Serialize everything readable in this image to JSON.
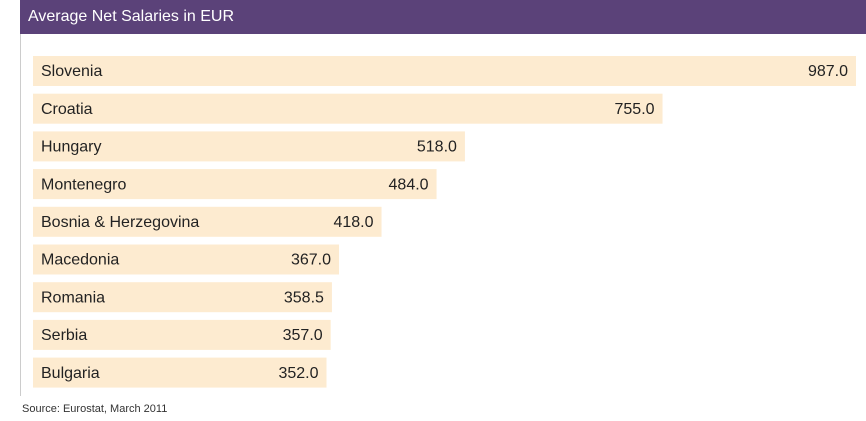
{
  "chart_data": {
    "type": "bar",
    "orientation": "horizontal",
    "title": "Average Net Salaries in EUR",
    "source": "Source: Eurostat, March 2011",
    "categories": [
      "Slovenia",
      "Croatia",
      "Hungary",
      "Montenegro",
      "Bosnia & Herzegovina",
      "Macedonia",
      "Romania",
      "Serbia",
      "Bulgaria"
    ],
    "values": [
      987,
      755,
      518,
      484,
      418,
      367,
      358.5,
      357,
      352
    ],
    "value_labels": [
      "987.0",
      "755.0",
      "518.0",
      "484.0",
      "418.0",
      "367.0",
      "358.5",
      "357.0",
      "352.0"
    ],
    "color": "#fdebd0"
  }
}
